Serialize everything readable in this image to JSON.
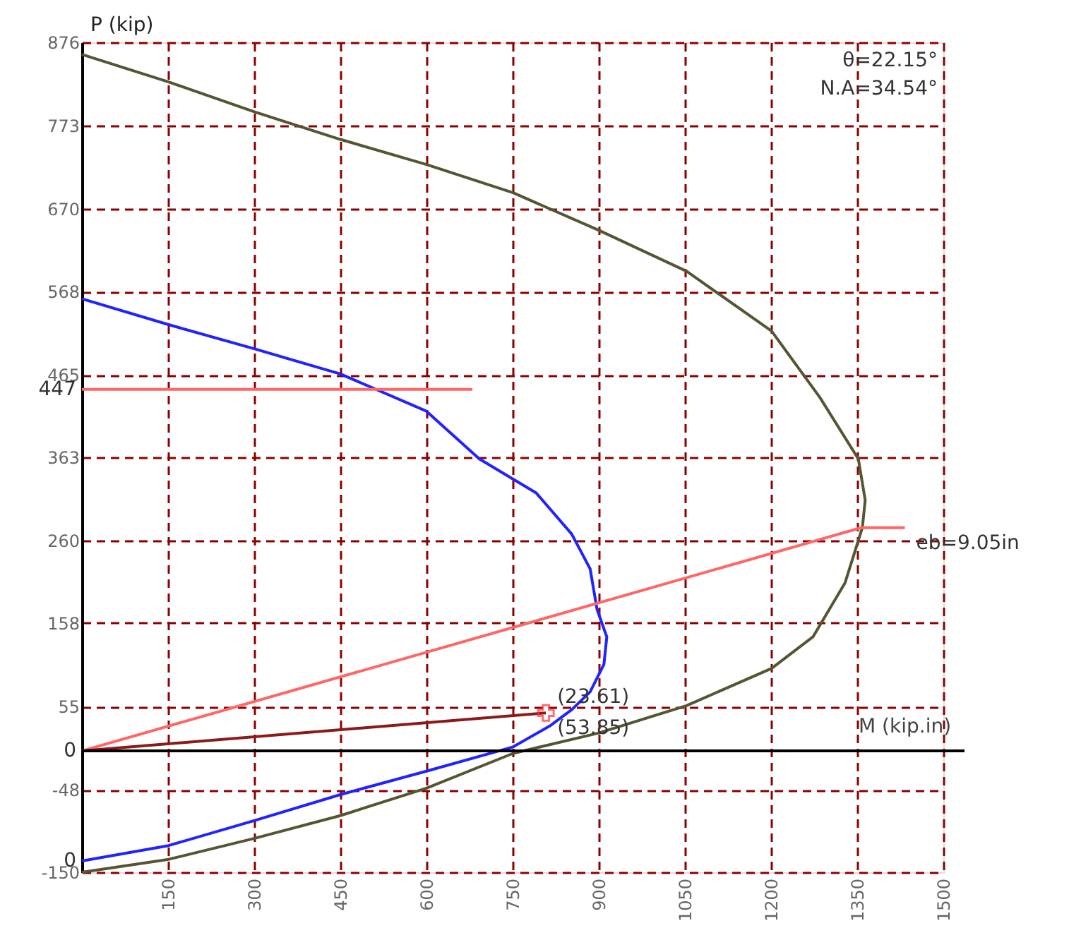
{
  "chart_data": {
    "type": "line",
    "xlabel": "M (kip.in)",
    "ylabel": "P (kip)",
    "xlim": [
      0,
      1500
    ],
    "xticks": [
      150,
      300,
      450,
      600,
      750,
      900,
      1050,
      1200,
      1350,
      1500
    ],
    "ylim": [
      -150,
      876
    ],
    "yticks": [
      876,
      773,
      670,
      568,
      465,
      363,
      260,
      158,
      55,
      -48,
      -150
    ],
    "grid": true,
    "marker": "none",
    "line_style": "solid",
    "series": [
      {
        "color": "#555533",
        "x": [
          0,
          151,
          301,
          450,
          600,
          751,
          899,
          1053,
          1201,
          1285,
          1352,
          1364,
          1359,
          1329,
          1273,
          1201,
          1053,
          899,
          751,
          600,
          450,
          301,
          151,
          0
        ],
        "values": [
          861,
          827,
          790,
          756,
          725,
          690,
          644,
          593,
          519,
          437,
          361,
          310,
          276,
          208,
          141,
          102,
          56,
          22,
          -3,
          -46,
          -80,
          -108,
          -134,
          -150
        ]
      },
      {
        "color": "#2222ff",
        "x": [
          0,
          151,
          301,
          450,
          600,
          692,
          791,
          853,
          885,
          897,
          914,
          909,
          885,
          853,
          815,
          751,
          600,
          450,
          301,
          151,
          0
        ],
        "values": [
          559,
          527,
          497,
          466,
          420,
          361,
          319,
          268,
          225,
          175,
          141,
          107,
          73,
          51,
          31,
          5,
          -25,
          -54,
          -86,
          -117,
          -136
        ]
      },
      {
        "color": "#ff6666",
        "x": [
          0,
          1357,
          1433
        ],
        "values": [
          0,
          276,
          276
        ]
      },
      {
        "color": "#ff6666",
        "x": [
          0,
          680
        ],
        "values": [
          447,
          447
        ]
      },
      {
        "color": "#8b1a1a",
        "x": [
          0,
          808
        ],
        "values": [
          0,
          47
        ]
      },
      {
        "type": "scatter",
        "marker": "cross",
        "color": "#ff3333",
        "x": [
          808
        ],
        "values": [
          47
        ]
      }
    ],
    "ref_lines": [
      {
        "axis": "y",
        "value": 0,
        "color": "#000000"
      }
    ],
    "annotations": [
      "θ=22.15°",
      "N.A=34.54°",
      {
        "text": "eb=9.05in",
        "x": 1433,
        "y": 276
      },
      {
        "text": "447",
        "x": 0,
        "y": 447
      },
      {
        "text": "0",
        "x": 0,
        "y": 0
      },
      {
        "text": "0",
        "x": 0,
        "y": -136
      },
      {
        "text": "(53.85)",
        "x": 808,
        "y": 47
      },
      {
        "text": "(23.61)",
        "x": 808,
        "y": 47
      }
    ]
  }
}
